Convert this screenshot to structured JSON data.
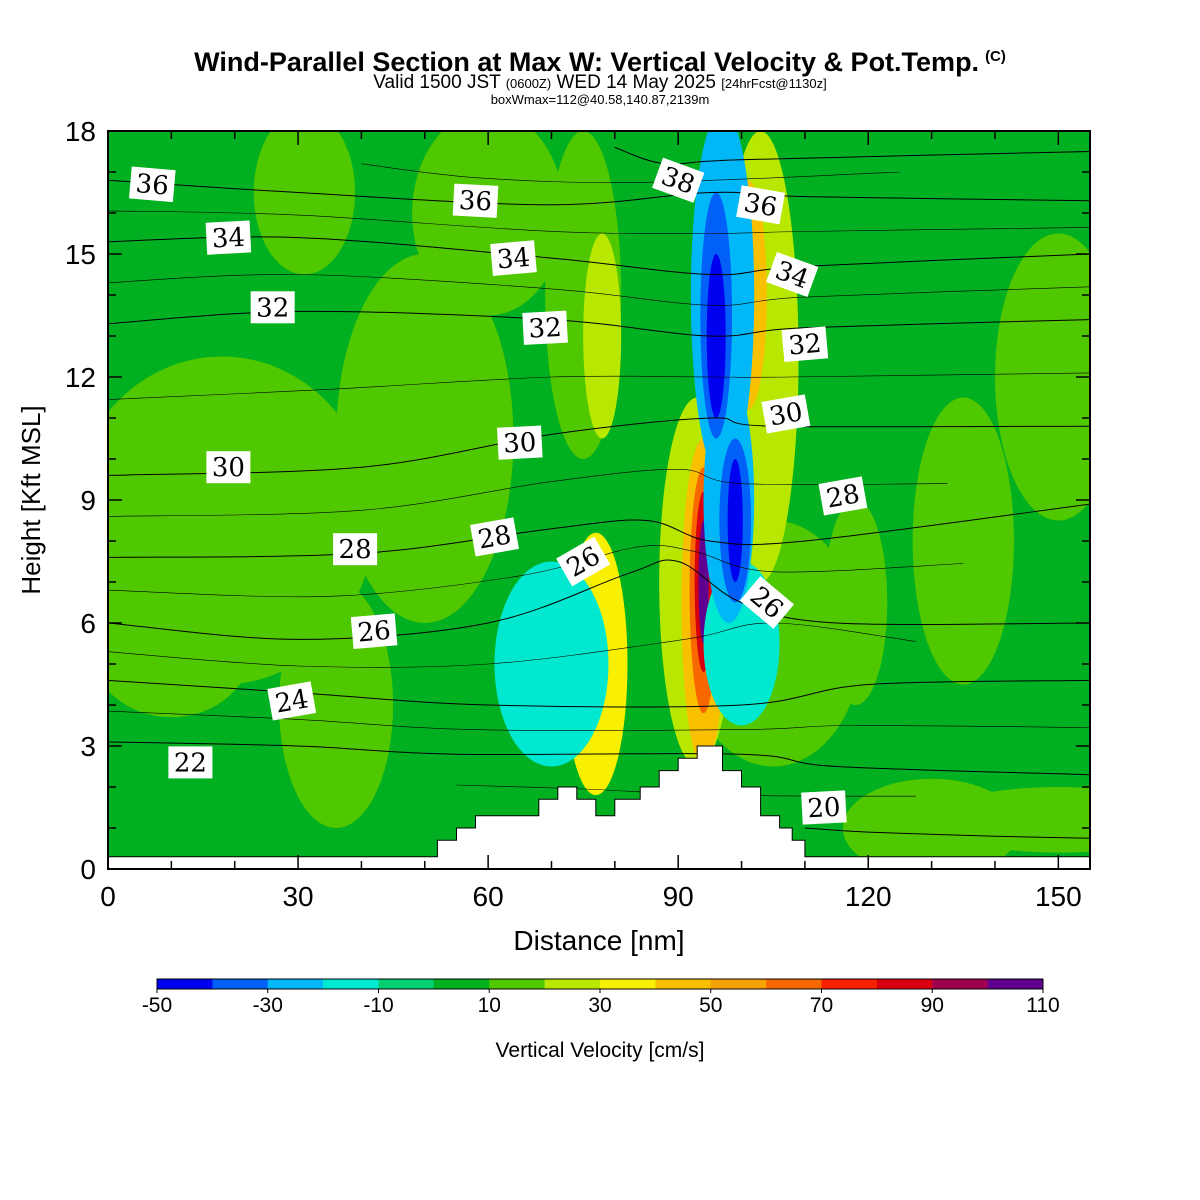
{
  "title": {
    "main": "Wind-Parallel Section at Max W: Vertical Velocity & Pot.Temp.",
    "copyright": "(C)",
    "valid_prefix": "Valid 1500 JST",
    "valid_z": "(0600Z)",
    "valid_date": "WED 14 May 2025",
    "forecast": "[24hrFcst@1130z]",
    "box_info": "boxWmax=112@40.58,140.87,2139m"
  },
  "chart_data": {
    "type": "heatmap",
    "xlabel": "Distance [nm]",
    "ylabel": "Height [Kft MSL]",
    "xlim": [
      0,
      155
    ],
    "ylim": [
      0,
      18
    ],
    "x_ticks": [
      0,
      30,
      60,
      90,
      120,
      150
    ],
    "y_ticks": [
      0,
      3,
      6,
      9,
      12,
      15,
      18
    ],
    "grid": false,
    "colorbar": {
      "label": "Vertical Velocity [cm/s]",
      "tick_labels": [
        "-50",
        "-30",
        "-10",
        "10",
        "30",
        "50",
        "70",
        "90",
        "110"
      ],
      "levels": [
        -50,
        -40,
        -30,
        -20,
        -10,
        0,
        10,
        20,
        30,
        40,
        50,
        60,
        70,
        80,
        90,
        100,
        110
      ],
      "colors": [
        "#0000f0",
        "#0060f8",
        "#00b8f8",
        "#00e8d0",
        "#00d070",
        "#00b020",
        "#50c800",
        "#b8e800",
        "#f8f000",
        "#f8c000",
        "#f8a000",
        "#f86800",
        "#f82000",
        "#d80010",
        "#a00050",
        "#600090"
      ]
    },
    "background_value": 5,
    "velocity_features": [
      {
        "x": 110,
        "y": 16.5,
        "rx": 9,
        "ry": 1.8,
        "value": 0
      },
      {
        "x": 18,
        "y": 8.5,
        "rx": 24,
        "ry": 4.0,
        "value": 15
      },
      {
        "x": 50,
        "y": 10.5,
        "rx": 14,
        "ry": 4.5,
        "value": 15
      },
      {
        "x": 75,
        "y": 14.0,
        "rx": 6,
        "ry": 4.0,
        "value": 15
      },
      {
        "x": 135,
        "y": 8.0,
        "rx": 8,
        "ry": 3.5,
        "value": 15
      },
      {
        "x": 150,
        "y": 12.0,
        "rx": 10,
        "ry": 3.5,
        "value": 15
      },
      {
        "x": 105,
        "y": 5.5,
        "rx": 14,
        "ry": 3.0,
        "value": 15
      },
      {
        "x": 118,
        "y": 6.5,
        "rx": 5,
        "ry": 2.5,
        "value": 15
      },
      {
        "x": 150,
        "y": 1.2,
        "rx": 20,
        "ry": 0.8,
        "value": 15
      },
      {
        "x": 130,
        "y": 1.0,
        "rx": 14,
        "ry": 1.2,
        "value": 15
      },
      {
        "x": 36,
        "y": 4.0,
        "rx": 9,
        "ry": 3.0,
        "value": 15
      },
      {
        "x": 10,
        "y": 5.5,
        "rx": 13,
        "ry": 1.8,
        "value": 15
      },
      {
        "x": 60,
        "y": 16.0,
        "rx": 12,
        "ry": 2.5,
        "value": 15
      },
      {
        "x": 31,
        "y": 16.5,
        "rx": 8,
        "ry": 2.0,
        "value": 15
      },
      {
        "x": 78,
        "y": 13.0,
        "rx": 3,
        "ry": 2.5,
        "value": 25
      },
      {
        "x": 93,
        "y": 7.0,
        "rx": 6,
        "ry": 4.5,
        "value": 25
      },
      {
        "x": 103,
        "y": 12.5,
        "rx": 6,
        "ry": 5.5,
        "value": 25
      },
      {
        "x": 77,
        "y": 5.0,
        "rx": 5,
        "ry": 3.2,
        "value": 35
      },
      {
        "x": 94,
        "y": 6.5,
        "rx": 3.5,
        "ry": 4.0,
        "value": 45
      },
      {
        "x": 101,
        "y": 14.0,
        "rx": 3,
        "ry": 2.8,
        "value": 45
      },
      {
        "x": 94,
        "y": 6.8,
        "rx": 2.2,
        "ry": 3.0,
        "value": 65
      },
      {
        "x": 94,
        "y": 7.0,
        "rx": 1.4,
        "ry": 2.2,
        "value": 85
      },
      {
        "x": 94,
        "y": 7.0,
        "rx": 0.8,
        "ry": 1.5,
        "value": 105
      },
      {
        "x": 70,
        "y": 5.0,
        "rx": 9,
        "ry": 2.5,
        "value": -15
      },
      {
        "x": 100,
        "y": 5.5,
        "rx": 6,
        "ry": 2.0,
        "value": -15
      },
      {
        "x": 97,
        "y": 14.0,
        "rx": 5,
        "ry": 4.5,
        "value": -25
      },
      {
        "x": 98,
        "y": 9.0,
        "rx": 4,
        "ry": 3.0,
        "value": -25
      },
      {
        "x": 96,
        "y": 13.5,
        "rx": 2.5,
        "ry": 3.0,
        "value": -35
      },
      {
        "x": 99,
        "y": 8.5,
        "rx": 2.5,
        "ry": 2.0,
        "value": -35
      },
      {
        "x": 96,
        "y": 13.0,
        "rx": 1.5,
        "ry": 2.0,
        "value": -45
      },
      {
        "x": 99,
        "y": 8.5,
        "rx": 1.2,
        "ry": 1.5,
        "value": -45
      }
    ],
    "terrain": [
      [
        0,
        0.3
      ],
      [
        52,
        0.3
      ],
      [
        52,
        0.7
      ],
      [
        55,
        0.7
      ],
      [
        55,
        1.0
      ],
      [
        58,
        1.0
      ],
      [
        58,
        1.3
      ],
      [
        68,
        1.3
      ],
      [
        68,
        1.7
      ],
      [
        71,
        1.7
      ],
      [
        71,
        2.0
      ],
      [
        74,
        2.0
      ],
      [
        74,
        1.7
      ],
      [
        77,
        1.7
      ],
      [
        77,
        1.3
      ],
      [
        80,
        1.3
      ],
      [
        80,
        1.7
      ],
      [
        84,
        1.7
      ],
      [
        84,
        2.0
      ],
      [
        87,
        2.0
      ],
      [
        87,
        2.4
      ],
      [
        90,
        2.4
      ],
      [
        90,
        2.7
      ],
      [
        93,
        2.7
      ],
      [
        93,
        3.0
      ],
      [
        97,
        3.0
      ],
      [
        97,
        2.4
      ],
      [
        100,
        2.4
      ],
      [
        100,
        2.0
      ],
      [
        103,
        2.0
      ],
      [
        103,
        1.3
      ],
      [
        106,
        1.3
      ],
      [
        106,
        1.0
      ],
      [
        108,
        1.0
      ],
      [
        108,
        0.7
      ],
      [
        110,
        0.7
      ],
      [
        110,
        0.3
      ],
      [
        155,
        0.3
      ]
    ],
    "theta_contours": [
      {
        "label": "20",
        "points": [
          [
            110,
            1.0
          ],
          [
            120,
            0.9
          ],
          [
            140,
            0.8
          ],
          [
            155,
            0.75
          ]
        ],
        "label_at": [
          113,
          1.5
        ],
        "label_rot": -3
      },
      {
        "label": "22",
        "points": [
          [
            0,
            3.1
          ],
          [
            30,
            3.0
          ],
          [
            55,
            2.8
          ],
          [
            100,
            2.8
          ],
          [
            115,
            2.5
          ],
          [
            155,
            2.3
          ]
        ],
        "label_at": [
          13,
          2.6
        ],
        "label_rot": 0
      },
      {
        "label": "24",
        "points": [
          [
            0,
            4.6
          ],
          [
            30,
            4.3
          ],
          [
            60,
            4.0
          ],
          [
            100,
            4.0
          ],
          [
            120,
            4.5
          ],
          [
            155,
            4.6
          ]
        ],
        "label_at": [
          29,
          4.1
        ],
        "label_rot": -10
      },
      {
        "label": "26",
        "points": [
          [
            0,
            6.0
          ],
          [
            30,
            5.6
          ],
          [
            60,
            6.0
          ],
          [
            82,
            7.2
          ],
          [
            90,
            7.5
          ],
          [
            100,
            6.5
          ],
          [
            115,
            6.0
          ],
          [
            155,
            6.0
          ]
        ],
        "label_at": [
          42,
          5.8
        ],
        "label_rot": -5,
        "extra_labels": [
          [
            75,
            7.5,
            -30
          ],
          [
            104,
            6.5,
            40
          ]
        ]
      },
      {
        "label": "28",
        "points": [
          [
            0,
            7.6
          ],
          [
            40,
            7.7
          ],
          [
            70,
            8.3
          ],
          [
            85,
            8.5
          ],
          [
            95,
            8.0
          ],
          [
            110,
            8.0
          ],
          [
            155,
            8.9
          ]
        ],
        "label_at": [
          39,
          7.8
        ],
        "label_rot": 0,
        "extra_labels": [
          [
            61,
            8.1,
            -10
          ],
          [
            116,
            9.1,
            -10
          ]
        ]
      },
      {
        "label": "30",
        "points": [
          [
            0,
            9.6
          ],
          [
            40,
            9.8
          ],
          [
            70,
            10.6
          ],
          [
            95,
            11.0
          ],
          [
            105,
            10.8
          ],
          [
            155,
            10.8
          ]
        ],
        "label_at": [
          19,
          9.8
        ],
        "label_rot": 0,
        "extra_labels": [
          [
            65,
            10.4,
            -3
          ],
          [
            107,
            11.1,
            -10
          ]
        ]
      },
      {
        "label": "32",
        "points": [
          [
            0,
            13.3
          ],
          [
            30,
            13.6
          ],
          [
            70,
            13.4
          ],
          [
            95,
            13.0
          ],
          [
            110,
            13.2
          ],
          [
            155,
            13.4
          ]
        ],
        "label_at": [
          26,
          13.7
        ],
        "label_rot": 0,
        "extra_labels": [
          [
            69,
            13.2,
            -3
          ],
          [
            110,
            12.8,
            -5
          ]
        ]
      },
      {
        "label": "34",
        "points": [
          [
            0,
            15.3
          ],
          [
            30,
            15.4
          ],
          [
            70,
            14.9
          ],
          [
            95,
            14.5
          ],
          [
            110,
            14.7
          ],
          [
            155,
            15.0
          ]
        ],
        "label_at": [
          19,
          15.4
        ],
        "label_rot": -3,
        "extra_labels": [
          [
            64,
            14.9,
            -5
          ],
          [
            108,
            14.5,
            20
          ]
        ]
      },
      {
        "label": "36",
        "points": [
          [
            0,
            16.8
          ],
          [
            30,
            16.5
          ],
          [
            70,
            16.2
          ],
          [
            95,
            16.5
          ],
          [
            110,
            16.4
          ],
          [
            155,
            16.3
          ]
        ],
        "label_at": [
          7,
          16.7
        ],
        "label_rot": 5,
        "extra_labels": [
          [
            58,
            16.3,
            3
          ],
          [
            103,
            16.2,
            10
          ]
        ]
      },
      {
        "label": "38",
        "points": [
          [
            80,
            17.6
          ],
          [
            88,
            17.2
          ],
          [
            100,
            17.3
          ],
          [
            155,
            17.5
          ]
        ],
        "label_at": [
          90,
          16.8
        ],
        "label_rot": 20
      }
    ]
  }
}
